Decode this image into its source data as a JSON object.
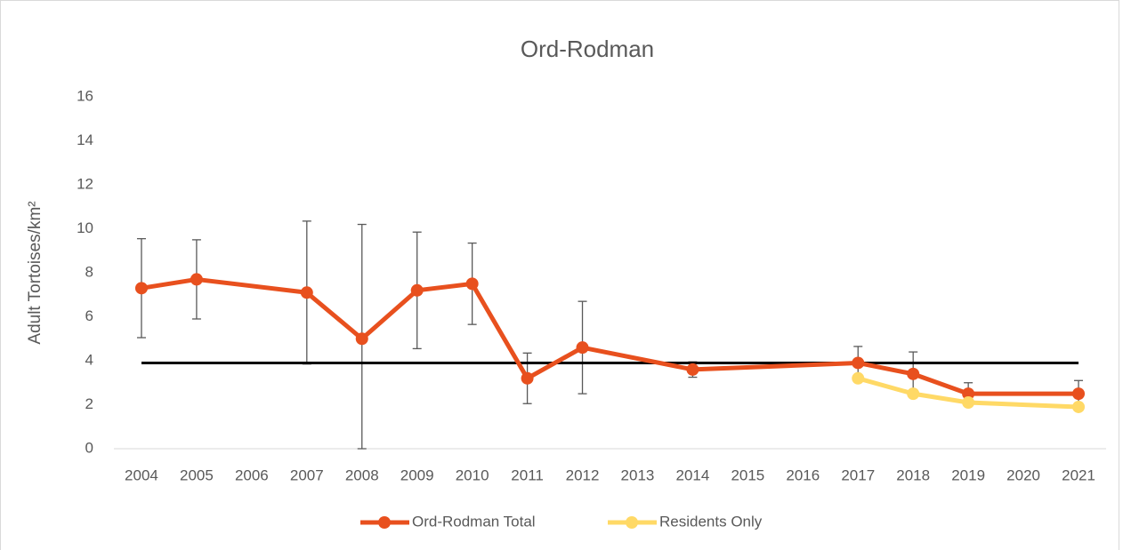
{
  "chart_data": {
    "type": "line",
    "title": "Ord-Rodman",
    "y_label": "Adult Tortoises/km²",
    "categories": [
      "2004",
      "2005",
      "2006",
      "2007",
      "2008",
      "2009",
      "2010",
      "2011",
      "2012",
      "2013",
      "2014",
      "2015",
      "2016",
      "2017",
      "2018",
      "2019",
      "2020",
      "2021"
    ],
    "series": [
      {
        "name": "Ord-Rodman Total",
        "color": "#e8501e",
        "values": [
          7.3,
          7.7,
          null,
          7.1,
          5.0,
          7.2,
          7.5,
          3.2,
          4.6,
          null,
          3.6,
          null,
          null,
          3.9,
          3.4,
          2.5,
          null,
          2.5
        ],
        "errors": [
          2.25,
          1.8,
          null,
          3.25,
          5.2,
          2.65,
          1.85,
          1.15,
          2.1,
          null,
          0.35,
          null,
          null,
          0.75,
          1.0,
          0.5,
          null,
          0.6
        ]
      },
      {
        "name": "Residents Only",
        "color": "#ffd966",
        "values": [
          null,
          null,
          null,
          null,
          null,
          null,
          null,
          null,
          null,
          null,
          null,
          null,
          null,
          3.2,
          2.5,
          2.1,
          null,
          1.9
        ]
      }
    ],
    "reference_line": {
      "value": 3.9,
      "color": "#000000"
    },
    "connect_gaps": true,
    "ylim": [
      0,
      16
    ],
    "yticks": [
      0,
      2,
      4,
      6,
      8,
      10,
      12,
      14,
      16
    ],
    "grid": false,
    "legend": "bottom"
  }
}
